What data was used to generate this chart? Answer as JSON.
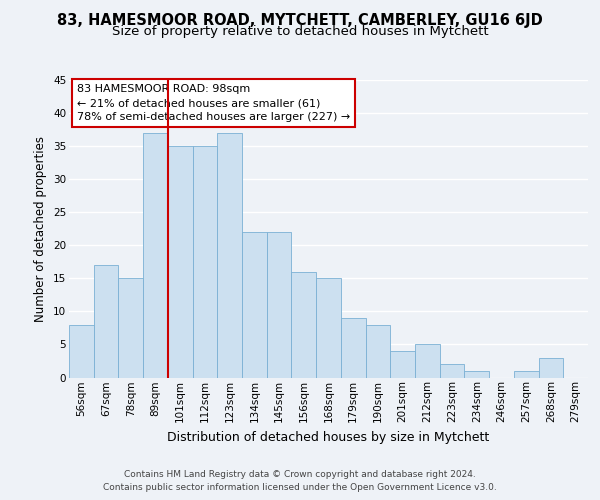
{
  "title": "83, HAMESMOOR ROAD, MYTCHETT, CAMBERLEY, GU16 6JD",
  "subtitle": "Size of property relative to detached houses in Mytchett",
  "xlabel": "Distribution of detached houses by size in Mytchett",
  "ylabel": "Number of detached properties",
  "footer_line1": "Contains HM Land Registry data © Crown copyright and database right 2024.",
  "footer_line2": "Contains public sector information licensed under the Open Government Licence v3.0.",
  "categories": [
    "56sqm",
    "67sqm",
    "78sqm",
    "89sqm",
    "101sqm",
    "112sqm",
    "123sqm",
    "134sqm",
    "145sqm",
    "156sqm",
    "168sqm",
    "179sqm",
    "190sqm",
    "201sqm",
    "212sqm",
    "223sqm",
    "234sqm",
    "246sqm",
    "257sqm",
    "268sqm",
    "279sqm"
  ],
  "values": [
    8,
    17,
    15,
    37,
    35,
    35,
    37,
    22,
    22,
    16,
    15,
    9,
    8,
    4,
    5,
    2,
    1,
    0,
    1,
    3,
    0
  ],
  "bar_color": "#cce0f0",
  "bar_edge_color": "#7ab0d4",
  "highlight_bar_index": 4,
  "highlight_line_color": "#cc0000",
  "annotation_title": "83 HAMESMOOR ROAD: 98sqm",
  "annotation_line1": "← 21% of detached houses are smaller (61)",
  "annotation_line2": "78% of semi-detached houses are larger (227) →",
  "annotation_box_color": "#ffffff",
  "annotation_box_edge": "#cc0000",
  "ylim": [
    0,
    45
  ],
  "yticks": [
    0,
    5,
    10,
    15,
    20,
    25,
    30,
    35,
    40,
    45
  ],
  "background_color": "#eef2f7",
  "plot_background": "#eef2f7",
  "grid_color": "#ffffff",
  "title_fontsize": 10.5,
  "subtitle_fontsize": 9.5,
  "ylabel_fontsize": 8.5,
  "xlabel_fontsize": 9,
  "tick_fontsize": 7.5,
  "annotation_fontsize": 8.0,
  "footer_fontsize": 6.5
}
